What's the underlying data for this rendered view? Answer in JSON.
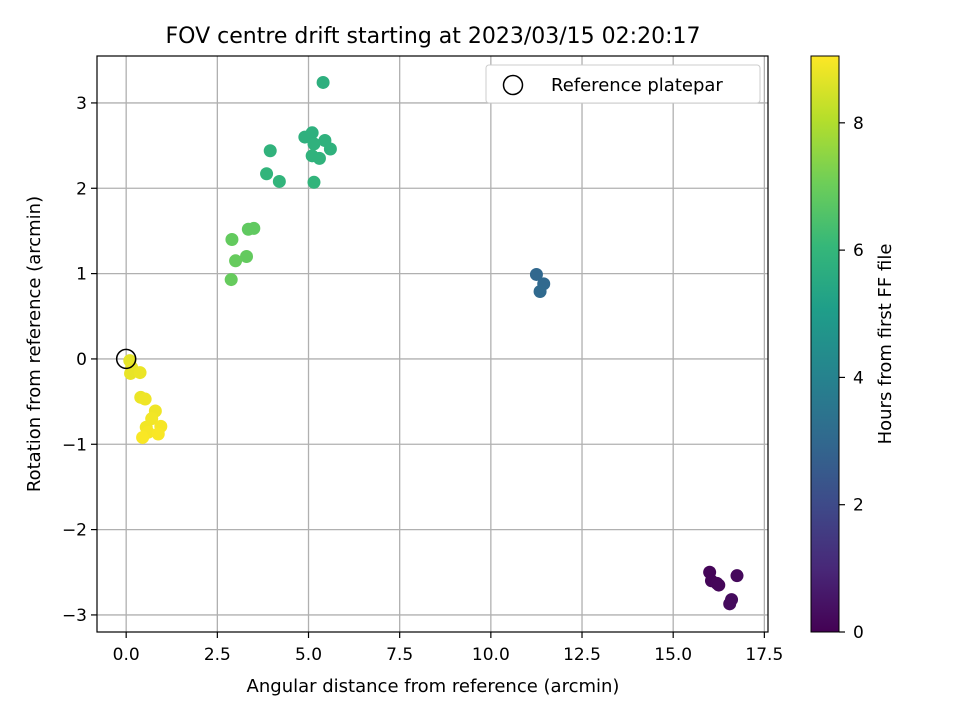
{
  "chart_data": {
    "type": "scatter",
    "title": "FOV centre drift starting at 2023/03/15 02:20:17",
    "xlabel": "Angular distance from reference (arcmin)",
    "ylabel": "Rotation from reference (arcmin)",
    "xlim": [
      -0.8,
      17.6
    ],
    "ylim": [
      -3.2,
      3.55
    ],
    "xticks": [
      0.0,
      2.5,
      5.0,
      7.5,
      10.0,
      12.5,
      15.0,
      17.5
    ],
    "xtick_labels": [
      "0.0",
      "2.5",
      "5.0",
      "7.5",
      "10.0",
      "12.5",
      "15.0",
      "17.5"
    ],
    "yticks": [
      -3,
      -2,
      -1,
      0,
      1,
      2,
      3
    ],
    "ytick_labels": [
      "−3",
      "−2",
      "−1",
      "0",
      "1",
      "2",
      "3"
    ],
    "grid": true,
    "legend": {
      "position": "top-right",
      "label": "Reference platepar"
    },
    "reference_point": {
      "x": 0,
      "y": 0,
      "marker": "open-circle"
    },
    "colorbar": {
      "label": "Hours from first FF file",
      "range": [
        0,
        9.05
      ],
      "ticks": [
        0,
        2,
        4,
        6,
        8
      ],
      "tick_labels": [
        "0",
        "2",
        "4",
        "6",
        "8"
      ],
      "colormap": "viridis",
      "colors": [
        "#440154",
        "#482878",
        "#3e4a89",
        "#31688e",
        "#26828e",
        "#1f9e89",
        "#35b779",
        "#6ece58",
        "#b5de2b",
        "#fde725"
      ]
    },
    "points": [
      {
        "x": 16.0,
        "y": -2.5,
        "t": 0.1
      },
      {
        "x": 16.05,
        "y": -2.6,
        "t": 0.1
      },
      {
        "x": 16.2,
        "y": -2.63,
        "t": 0.15
      },
      {
        "x": 16.25,
        "y": -2.65,
        "t": 0.15
      },
      {
        "x": 16.75,
        "y": -2.54,
        "t": 0.2
      },
      {
        "x": 16.6,
        "y": -2.82,
        "t": 0.25
      },
      {
        "x": 16.55,
        "y": -2.87,
        "t": 0.25
      },
      {
        "x": 11.25,
        "y": 0.99,
        "t": 3.0
      },
      {
        "x": 11.45,
        "y": 0.88,
        "t": 3.05
      },
      {
        "x": 11.35,
        "y": 0.79,
        "t": 3.1
      },
      {
        "x": 5.4,
        "y": 3.24,
        "t": 5.7
      },
      {
        "x": 4.9,
        "y": 2.6,
        "t": 5.75
      },
      {
        "x": 5.1,
        "y": 2.65,
        "t": 5.75
      },
      {
        "x": 5.15,
        "y": 2.52,
        "t": 5.8
      },
      {
        "x": 5.45,
        "y": 2.56,
        "t": 5.8
      },
      {
        "x": 5.6,
        "y": 2.46,
        "t": 5.8
      },
      {
        "x": 3.95,
        "y": 2.44,
        "t": 5.85
      },
      {
        "x": 5.1,
        "y": 2.38,
        "t": 5.85
      },
      {
        "x": 5.3,
        "y": 2.35,
        "t": 5.85
      },
      {
        "x": 3.85,
        "y": 2.17,
        "t": 5.9
      },
      {
        "x": 4.2,
        "y": 2.08,
        "t": 5.9
      },
      {
        "x": 5.15,
        "y": 2.07,
        "t": 5.9
      },
      {
        "x": 3.35,
        "y": 1.52,
        "t": 6.8
      },
      {
        "x": 3.5,
        "y": 1.53,
        "t": 6.8
      },
      {
        "x": 2.9,
        "y": 1.4,
        "t": 6.85
      },
      {
        "x": 3.3,
        "y": 1.2,
        "t": 6.85
      },
      {
        "x": 3.0,
        "y": 1.15,
        "t": 6.9
      },
      {
        "x": 2.88,
        "y": 0.93,
        "t": 6.9
      },
      {
        "x": 0.1,
        "y": -0.02,
        "t": 8.7
      },
      {
        "x": 0.15,
        "y": -0.1,
        "t": 8.75
      },
      {
        "x": 0.12,
        "y": -0.17,
        "t": 8.75
      },
      {
        "x": 0.38,
        "y": -0.16,
        "t": 8.8
      },
      {
        "x": 0.4,
        "y": -0.45,
        "t": 8.8
      },
      {
        "x": 0.52,
        "y": -0.47,
        "t": 8.85
      },
      {
        "x": 0.8,
        "y": -0.61,
        "t": 8.85
      },
      {
        "x": 0.7,
        "y": -0.7,
        "t": 8.9
      },
      {
        "x": 0.55,
        "y": -0.8,
        "t": 8.9
      },
      {
        "x": 0.95,
        "y": -0.79,
        "t": 8.95
      },
      {
        "x": 0.6,
        "y": -0.86,
        "t": 8.95
      },
      {
        "x": 0.45,
        "y": -0.92,
        "t": 9.0
      },
      {
        "x": 0.88,
        "y": -0.88,
        "t": 9.0
      }
    ]
  }
}
